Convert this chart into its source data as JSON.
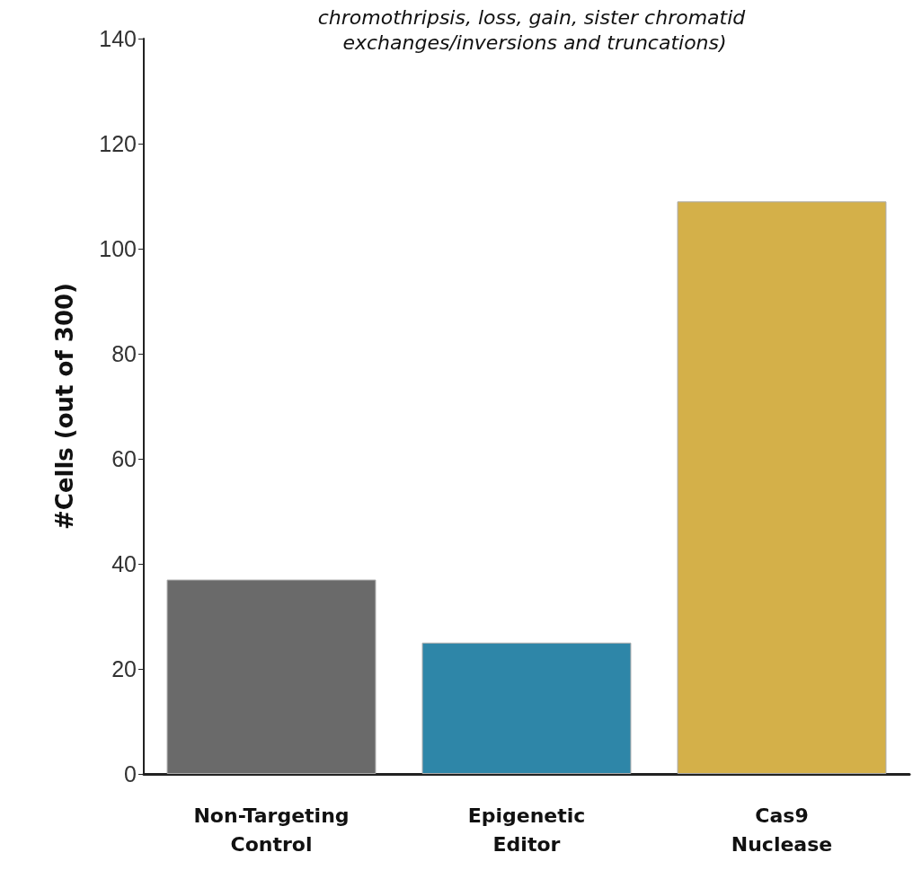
{
  "chart_data": {
    "type": "bar",
    "title": "chromothripsis, loss, gain, sister chromatid exchanges/inversions and truncations)",
    "ylabel": "#Cells (out of 300)",
    "categories": [
      "Non-Targeting\nControl",
      "Epigenetic\nEditor",
      "Cas9\nNuclease"
    ],
    "values": [
      37,
      25,
      109
    ],
    "colors": [
      "#6a6a6a",
      "#2e86a8",
      "#d4b049"
    ],
    "ylim": [
      0,
      140
    ],
    "yticks": [
      0,
      20,
      40,
      60,
      80,
      100,
      120,
      140
    ],
    "grid": false
  }
}
